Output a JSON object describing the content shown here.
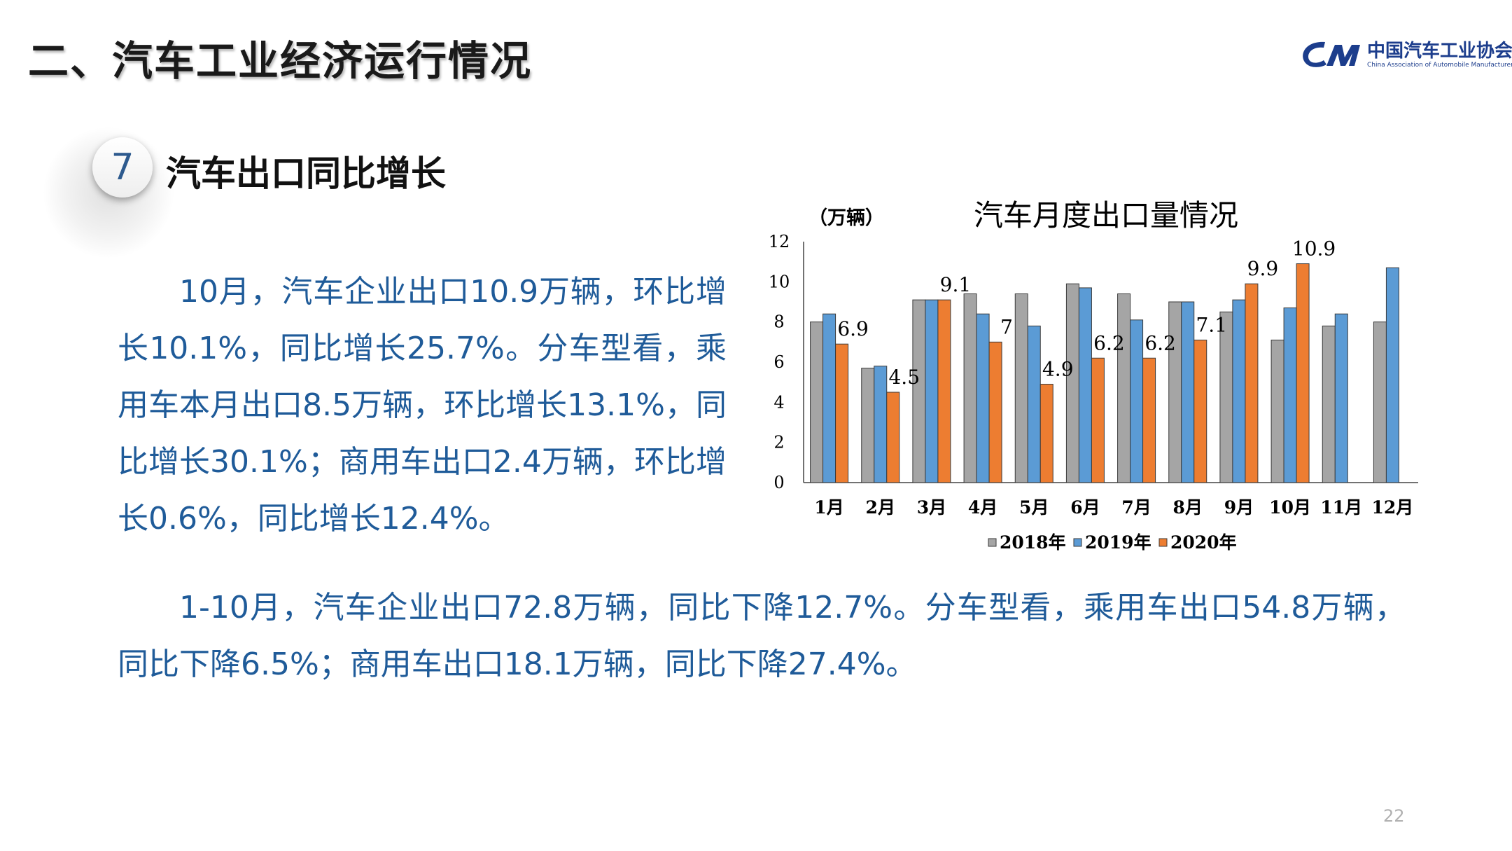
{
  "header": {
    "title": "二、汽车工业经济运行情况",
    "logo_cn": "中国汽车工业协会",
    "logo_en": "China Association of Automobile Manufacturers"
  },
  "section": {
    "number": "7",
    "title": "汽车出口同比增长"
  },
  "paragraphs": [
    "10月，汽车企业出口10.9万辆，环比增长10.1%，同比增长25.7%。分车型看，乘用车本月出口8.5万辆，环比增长13.1%，同比增长30.1%；商用车出口2.4万辆，环比增长0.6%，同比增长12.4%。",
    "1-10月，汽车企业出口72.8万辆，同比下降12.7%。分车型看，乘用车出口54.8万辆，同比下降6.5%；商用车出口18.1万辆，同比下降27.4%。"
  ],
  "page_number": "22",
  "colors": {
    "text_blue": "#1f5b99",
    "series_2018": "#a5a5a5",
    "series_2019": "#5b9bd5",
    "series_2020": "#ed7d31"
  },
  "chart_data": {
    "type": "bar",
    "title": "汽车月度出口量情况",
    "unit_label": "（万辆）",
    "categories": [
      "1月",
      "2月",
      "3月",
      "4月",
      "5月",
      "6月",
      "7月",
      "8月",
      "9月",
      "10月",
      "11月",
      "12月"
    ],
    "ylim": [
      0,
      12
    ],
    "yticks": [
      "0",
      "2",
      "4",
      "6",
      "8",
      "10",
      "12"
    ],
    "grid": false,
    "legend_position": "bottom",
    "series": [
      {
        "name": "2018年",
        "color": "#a5a5a5",
        "values": [
          8.0,
          5.7,
          9.1,
          9.4,
          9.4,
          9.9,
          9.4,
          9.0,
          8.5,
          7.1,
          7.8,
          8.0
        ]
      },
      {
        "name": "2019年",
        "color": "#5b9bd5",
        "values": [
          8.4,
          5.8,
          9.1,
          8.4,
          7.8,
          9.7,
          8.1,
          9.0,
          9.1,
          8.7,
          8.4,
          10.7
        ]
      },
      {
        "name": "2020年",
        "color": "#ed7d31",
        "values": [
          6.9,
          4.5,
          9.1,
          7.0,
          4.9,
          6.2,
          6.2,
          7.1,
          9.9,
          10.9,
          null,
          null
        ]
      }
    ],
    "data_labels_2020": [
      "6.9",
      "4.5",
      "9.1",
      "7",
      "4.9",
      "6.2",
      "6.2",
      "7.1",
      "9.9",
      "10.9",
      "",
      ""
    ]
  }
}
